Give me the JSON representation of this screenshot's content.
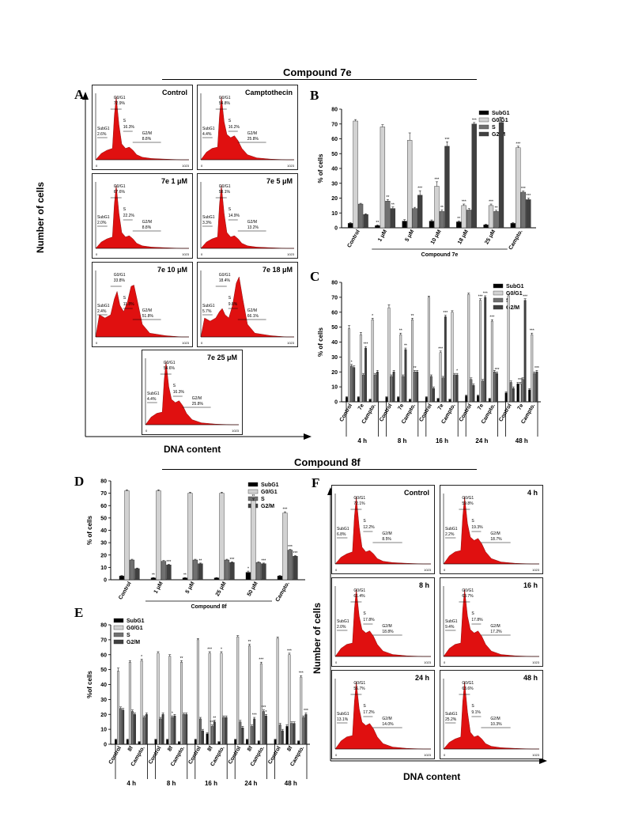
{
  "colors": {
    "subg1": "#000000",
    "g0g1": "#d2d2d2",
    "s": "#707070",
    "g2m": "#404040",
    "histogram_fill": "#e01010"
  },
  "section_titles": {
    "top": "Compound 7e",
    "bottom": "Compound 8f"
  },
  "axis_labels": {
    "number_of_cells": "Number of cells",
    "dna_content": "DNA content"
  },
  "panel_letters": {
    "A": "A",
    "B": "B",
    "C": "C",
    "D": "D",
    "E": "E",
    "F": "F"
  },
  "histograms": [
    {
      "id": "A1",
      "label": "Control",
      "g0": "72.9%",
      "s": "16.3%",
      "g2m": "8.8%",
      "sub": "2.6%",
      "shape": "control"
    },
    {
      "id": "A2",
      "label": "Camptothecin",
      "g0": "54.8%",
      "s": "16.2%",
      "g2m": "25.8%",
      "sub": "4.4%",
      "shape": "mid"
    },
    {
      "id": "A3",
      "label": "7e 1 μM",
      "g0": "67.6%",
      "s": "22.2%",
      "g2m": "8.8%",
      "sub": "2.0%",
      "shape": "control"
    },
    {
      "id": "A4",
      "label": "7e 5 μM",
      "g0": "58.1%",
      "s": "14.9%",
      "g2m": "13.2%",
      "sub": "3.3%",
      "shape": "control"
    },
    {
      "id": "A5",
      "label": "7e 10 μM",
      "g0": "33.8%",
      "s": "11.8%",
      "g2m": "51.8%",
      "sub": "2.4%",
      "shape": "g2"
    },
    {
      "id": "A6",
      "label": "7e 18 μM",
      "g0": "18.4%",
      "s": "9.8%",
      "g2m": "66.1%",
      "sub": "5.7%",
      "shape": "g2big"
    },
    {
      "id": "A7",
      "label": "7e 25 μM",
      "g0": "54.6%",
      "s": "16.3%",
      "g2m": "25.8%",
      "sub": "4.4%",
      "shape": "mid"
    },
    {
      "id": "F1",
      "label": "Control",
      "g0": "72.1%",
      "s": "12.2%",
      "g2m": "8.5%",
      "sub": "6.8%",
      "shape": "control"
    },
    {
      "id": "F2",
      "label": "4 h",
      "g0": "59.8%",
      "s": "19.3%",
      "g2m": "18.7%",
      "sub": "2.2%",
      "shape": "mid"
    },
    {
      "id": "F3",
      "label": "8 h",
      "g0": "61.4%",
      "s": "17.8%",
      "g2m": "18.8%",
      "sub": "2.0%",
      "shape": "mid"
    },
    {
      "id": "F4",
      "label": "16 h",
      "g0": "63.7%",
      "s": "17.8%",
      "g2m": "17.2%",
      "sub": "9.4%",
      "shape": "mid"
    },
    {
      "id": "F5",
      "label": "24 h",
      "g0": "56.7%",
      "s": "17.2%",
      "g2m": "14.0%",
      "sub": "13.1%",
      "shape": "mid"
    },
    {
      "id": "F6",
      "label": "48 h",
      "g0": "63.6%",
      "s": "9.1%",
      "g2m": "10.3%",
      "sub": "25.2%",
      "shape": "control"
    }
  ],
  "histogram_text": {
    "g0": "G0/G1",
    "s": "S",
    "g2m": "G2/M",
    "sub": "SubG1",
    "xmin": "0",
    "xmax": "1023"
  },
  "legend": [
    "SubG1",
    "G0/G1",
    "S",
    "G2/M"
  ],
  "chart_data": [
    {
      "id": "B",
      "type": "bar",
      "ylabel": "% of cells",
      "ylim": [
        0,
        80
      ],
      "categories": [
        "Control",
        "1 μM",
        "5 μM",
        "10 μM",
        "18 μM",
        "25 μM",
        "Campto."
      ],
      "group_label": "Compound 7e",
      "series": [
        {
          "name": "SubG1",
          "values": [
            3,
            1.5,
            4.5,
            4.5,
            4,
            2,
            3
          ],
          "err": [
            0.5,
            0.4,
            1,
            0.8,
            0.6,
            0.4,
            0.5
          ],
          "sig": [
            "",
            "**",
            "",
            "",
            "**",
            "",
            ""
          ]
        },
        {
          "name": "G0/G1",
          "values": [
            72,
            68,
            59,
            28,
            15,
            15,
            54
          ],
          "err": [
            1,
            1.5,
            5,
            3,
            1,
            1,
            1
          ],
          "sig": [
            "",
            "",
            "",
            "***",
            "***",
            "***",
            "***"
          ]
        },
        {
          "name": "S",
          "values": [
            16,
            18,
            13,
            11,
            12,
            11,
            24
          ],
          "err": [
            0.5,
            1,
            0.8,
            1,
            1,
            0.8,
            0.8
          ],
          "sig": [
            "",
            "**",
            "",
            "**",
            "",
            "**",
            "***"
          ]
        },
        {
          "name": "G2/M",
          "values": [
            9,
            13,
            22,
            55,
            70,
            71,
            19
          ],
          "err": [
            0.5,
            1,
            3,
            3,
            1,
            1,
            1
          ],
          "sig": [
            "",
            "**",
            "***",
            "***",
            "***",
            "***",
            "***"
          ]
        }
      ]
    },
    {
      "id": "C",
      "type": "bar",
      "ylabel": "% of cells",
      "ylim": [
        0,
        80
      ],
      "groups": [
        "4 h",
        "8 h",
        "16 h",
        "24 h",
        "48 h"
      ],
      "categories": [
        "Control",
        "7e",
        "Campto.",
        "Control",
        "7e",
        "Campto.",
        "Control",
        "7e",
        "Campto.",
        "Control",
        "7e",
        "Campto.",
        "Control",
        "7e",
        "Campto."
      ],
      "series": [
        {
          "name": "SubG1",
          "values": [
            3,
            3,
            1.5,
            3,
            3,
            1.5,
            3,
            2,
            1.5,
            4,
            4,
            2,
            6,
            12,
            8
          ],
          "err": [
            0.4,
            0.4,
            0.3,
            0.4,
            0.4,
            0.3,
            0.4,
            0.3,
            0.3,
            0.5,
            0.5,
            0.3,
            0.7,
            1,
            0.8
          ],
          "sig": [
            "",
            "",
            "",
            "",
            "",
            "",
            "",
            "",
            "",
            "",
            "",
            "",
            "",
            "",
            ""
          ]
        },
        {
          "name": "G0/G1",
          "values": [
            49,
            45,
            55,
            63,
            45,
            55,
            70,
            33,
            60,
            72,
            68,
            54,
            71,
            12,
            45
          ],
          "err": [
            2,
            1.5,
            1,
            2,
            1,
            1,
            0.8,
            1,
            1,
            0.8,
            1,
            1,
            0.8,
            1,
            1
          ],
          "sig": [
            "",
            "",
            "*",
            "",
            "**",
            "**",
            "",
            "***",
            "",
            "",
            "***",
            "***",
            "",
            "***",
            "***"
          ]
        },
        {
          "name": "S",
          "values": [
            24,
            18,
            18,
            17,
            17,
            20,
            17,
            16,
            18,
            15,
            14,
            20,
            13,
            15,
            19
          ],
          "err": [
            1,
            1,
            1,
            1,
            1,
            1,
            1,
            1,
            1,
            1,
            1,
            1,
            1,
            1,
            1
          ],
          "sig": [
            "*",
            "",
            "",
            "",
            "",
            "**",
            "",
            "",
            "",
            "",
            "",
            "",
            "",
            "",
            ""
          ]
        },
        {
          "name": "G2/M",
          "values": [
            23,
            36,
            20,
            20,
            35,
            20,
            9,
            57,
            18,
            11,
            70,
            19,
            9,
            68,
            20
          ],
          "err": [
            1,
            1,
            1,
            1,
            1,
            1,
            1,
            1,
            1,
            1,
            1,
            1,
            1,
            1,
            1
          ],
          "sig": [
            "",
            "***",
            "",
            "",
            "**",
            "",
            "",
            "***",
            "*",
            "",
            "***",
            "***",
            "",
            "***",
            "***"
          ]
        }
      ]
    },
    {
      "id": "D",
      "type": "bar",
      "ylabel": "% of cells",
      "ylim": [
        0,
        80
      ],
      "categories": [
        "Control",
        "1 μM",
        "5 μM",
        "25 μM",
        "50 μM",
        "Campto."
      ],
      "group_label": "Compound 8f",
      "series": [
        {
          "name": "SubG1",
          "values": [
            3,
            1.5,
            1.5,
            1.5,
            6,
            3
          ],
          "err": [
            0.4,
            0.3,
            0.3,
            0.3,
            1,
            0.5
          ],
          "sig": [
            "",
            "**",
            "**",
            "",
            "*",
            ""
          ]
        },
        {
          "name": "G0/G1",
          "values": [
            72,
            72,
            70,
            70,
            64,
            54
          ],
          "err": [
            0.8,
            0.8,
            0.8,
            0.8,
            1.5,
            1
          ],
          "sig": [
            "",
            "",
            "",
            "",
            "**",
            "***"
          ]
        },
        {
          "name": "S",
          "values": [
            16,
            15,
            16,
            16,
            14,
            24
          ],
          "err": [
            0.6,
            0.6,
            0.6,
            0.6,
            0.6,
            0.6
          ],
          "sig": [
            "",
            "",
            "",
            "",
            "",
            "***"
          ]
        },
        {
          "name": "G2/M",
          "values": [
            9,
            12,
            13,
            14,
            13,
            19
          ],
          "err": [
            0.5,
            0.5,
            0.5,
            0.5,
            0.5,
            0.5
          ],
          "sig": [
            "",
            "***",
            "**",
            "***",
            "***",
            "***"
          ]
        }
      ]
    },
    {
      "id": "E",
      "type": "bar",
      "ylabel": "%of cells",
      "ylim": [
        0,
        80
      ],
      "groups": [
        "4 h",
        "8 h",
        "16 h",
        "24 h",
        "48 h"
      ],
      "categories": [
        "Control",
        "8f",
        "Campto.",
        "Control",
        "8f",
        "Campto.",
        "Control",
        "8f",
        "Campto.",
        "Control",
        "8f",
        "Campto.",
        "Control",
        "8f",
        "Campto."
      ],
      "series": [
        {
          "name": "SubG1",
          "values": [
            3,
            3,
            1.5,
            3,
            3,
            1.5,
            3,
            7,
            1.5,
            3,
            3,
            2,
            3,
            12,
            2
          ],
          "err": [
            0.4,
            0.4,
            0.3,
            0.4,
            0.4,
            0.3,
            0.4,
            0.7,
            0.3,
            0.4,
            0.4,
            0.3,
            0.4,
            1,
            0.3
          ],
          "sig": [
            "",
            "",
            "",
            "",
            "",
            "",
            "",
            "",
            "",
            "",
            "",
            "",
            "",
            "",
            ""
          ]
        },
        {
          "name": "G0/G1",
          "values": [
            49,
            55,
            56,
            61,
            59,
            55,
            70,
            61,
            61,
            72,
            66,
            54,
            71,
            60,
            45
          ],
          "err": [
            2,
            1,
            1,
            1,
            1,
            1,
            0.8,
            1,
            1,
            0.8,
            1,
            1,
            0.8,
            1,
            1
          ],
          "sig": [
            "",
            "",
            "*",
            "",
            "",
            "**",
            "",
            "***",
            "*",
            "",
            "**",
            "***",
            "",
            "***",
            "***"
          ]
        },
        {
          "name": "S",
          "values": [
            24,
            22,
            18,
            17,
            18,
            20,
            17,
            12,
            18,
            15,
            12,
            22,
            13,
            14,
            18
          ],
          "err": [
            1,
            1,
            1,
            1,
            1,
            1,
            1,
            1,
            1,
            1,
            1,
            1,
            1,
            1,
            1
          ],
          "sig": [
            "",
            "",
            "",
            "",
            "*",
            "",
            "",
            "***",
            "",
            "",
            "",
            "***",
            "",
            "",
            ""
          ]
        },
        {
          "name": "G2/M",
          "values": [
            23,
            20,
            20,
            20,
            19,
            20,
            9,
            15,
            18,
            11,
            17,
            19,
            9,
            14,
            20
          ],
          "err": [
            1,
            1,
            1,
            1,
            1,
            1,
            1,
            1,
            1,
            1,
            1,
            1,
            1,
            1,
            1
          ],
          "sig": [
            "",
            "",
            "",
            "",
            "",
            "",
            "",
            "**",
            "",
            "",
            "***",
            "*",
            "",
            "",
            "***"
          ]
        }
      ]
    }
  ]
}
